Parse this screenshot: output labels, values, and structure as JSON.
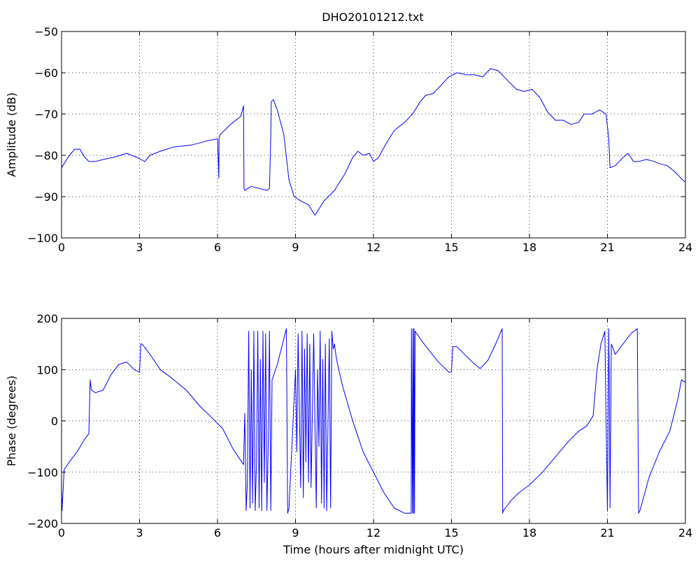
{
  "figure": {
    "title": "DHO20101212.txt"
  },
  "chart_data": [
    {
      "type": "line",
      "title": "DHO20101212.txt",
      "xlabel": "",
      "ylabel": "Amplitude (dB)",
      "xlim": [
        0,
        24
      ],
      "ylim": [
        -100,
        -50
      ],
      "xticks": [
        0,
        3,
        6,
        9,
        12,
        15,
        18,
        21,
        24
      ],
      "yticks": [
        -100,
        -90,
        -80,
        -70,
        -60,
        -50
      ],
      "grid": true,
      "series": [
        {
          "color": "#0000ff",
          "x": [
            0,
            0.25,
            0.5,
            0.7,
            0.9,
            1.05,
            1.3,
            1.6,
            2.0,
            2.5,
            2.9,
            3.2,
            3.4,
            3.8,
            4.3,
            5.0,
            5.6,
            6.0,
            6.05,
            6.06,
            6.1,
            6.5,
            6.9,
            7.0,
            7.02,
            7.05,
            7.3,
            7.6,
            7.9,
            8.0,
            8.05,
            8.07,
            8.15,
            8.3,
            8.55,
            8.75,
            8.95,
            9.2,
            9.5,
            9.75,
            10.1,
            10.5,
            10.9,
            11.2,
            11.4,
            11.6,
            11.85,
            12.0,
            12.2,
            12.5,
            12.8,
            13.2,
            13.5,
            13.8,
            14.0,
            14.3,
            14.6,
            14.9,
            15.2,
            15.6,
            15.9,
            16.2,
            16.5,
            16.8,
            17.1,
            17.5,
            17.8,
            18.1,
            18.4,
            18.7,
            19.0,
            19.3,
            19.6,
            19.9,
            20.1,
            20.4,
            20.7,
            20.95,
            21.05,
            21.1,
            21.3,
            21.6,
            21.8,
            22.0,
            22.2,
            22.5,
            22.8,
            23.0,
            23.3,
            23.6,
            23.9,
            24.0
          ],
          "y": [
            -83,
            -80.5,
            -78.5,
            -78.5,
            -80.5,
            -81.5,
            -81.5,
            -81,
            -80.5,
            -79.5,
            -80.5,
            -81.5,
            -80,
            -79,
            -78,
            -77.5,
            -76.5,
            -76,
            -85.5,
            -76,
            -75,
            -72.5,
            -70.5,
            -68,
            -88,
            -88.5,
            -87.5,
            -88,
            -88.5,
            -88,
            -75,
            -67,
            -66.5,
            -69,
            -75,
            -86,
            -90,
            -91,
            -92,
            -94.5,
            -91,
            -88.5,
            -84.5,
            -80.5,
            -79,
            -80,
            -79.5,
            -81.5,
            -80.5,
            -77,
            -74,
            -72,
            -70,
            -67,
            -65.5,
            -65,
            -63,
            -61,
            -60,
            -60.5,
            -60.5,
            -61,
            -59,
            -59.5,
            -61.5,
            -64,
            -64.5,
            -64,
            -66,
            -69.5,
            -71.5,
            -71.5,
            -72.5,
            -72,
            -70,
            -70,
            -69,
            -70,
            -76,
            -83,
            -82.5,
            -80.5,
            -79.5,
            -81.5,
            -81.5,
            -81,
            -81.5,
            -82,
            -82.5,
            -84,
            -86,
            -86.5
          ]
        }
      ]
    },
    {
      "type": "line",
      "title": "",
      "xlabel": "Time (hours after midnight UTC)",
      "ylabel": "Phase (degrees)",
      "xlim": [
        0,
        24
      ],
      "ylim": [
        -200,
        200
      ],
      "xticks": [
        0,
        3,
        6,
        9,
        12,
        15,
        18,
        21,
        24
      ],
      "yticks": [
        -200,
        -100,
        0,
        100,
        200
      ],
      "grid": true,
      "series": [
        {
          "color": "#0000ff",
          "x": [
            0,
            0.02,
            0.1,
            0.3,
            0.6,
            0.9,
            1.05,
            1.1,
            1.15,
            1.3,
            1.6,
            1.9,
            2.2,
            2.5,
            2.8,
            3.0,
            3.05,
            3.1,
            3.4,
            3.8,
            4.2,
            4.8,
            5.3,
            5.8,
            6.2,
            6.6,
            7.0,
            7.05,
            7.1,
            7.15,
            7.2,
            7.25,
            7.3,
            7.35,
            7.4,
            7.45,
            7.5,
            7.55,
            7.6,
            7.65,
            7.7,
            7.75,
            7.8,
            7.85,
            7.9,
            7.95,
            8.0,
            8.05,
            8.1,
            8.3,
            8.6,
            8.65,
            8.7,
            8.75,
            9.0,
            9.05,
            9.1,
            9.2,
            9.25,
            9.3,
            9.35,
            9.4,
            9.45,
            9.5,
            9.55,
            9.6,
            9.7,
            9.8,
            9.85,
            9.9,
            9.95,
            10.0,
            10.05,
            10.1,
            10.15,
            10.2,
            10.3,
            10.35,
            10.4,
            10.45,
            10.5,
            10.55,
            10.6,
            10.8,
            11.2,
            11.6,
            12.0,
            12.4,
            12.8,
            13.2,
            13.45,
            13.46,
            13.5,
            13.52,
            13.54,
            13.56,
            13.58,
            13.6,
            13.8,
            14.1,
            14.5,
            14.9,
            15.0,
            15.05,
            15.2,
            15.5,
            15.8,
            16.1,
            16.4,
            16.7,
            16.95,
            16.97,
            17.0,
            17.3,
            17.6,
            18.0,
            18.5,
            19.0,
            19.5,
            19.9,
            20.2,
            20.45,
            20.6,
            20.75,
            20.9,
            21.0,
            21.05,
            21.08,
            21.1,
            21.15,
            21.3,
            21.6,
            21.9,
            22.15,
            22.2,
            22.25,
            22.6,
            23.0,
            23.4,
            23.7,
            23.85,
            24.0
          ],
          "y": [
            -130,
            -175,
            -95,
            -80,
            -60,
            -35,
            -25,
            80,
            60,
            55,
            60,
            90,
            110,
            115,
            100,
            95,
            150,
            150,
            130,
            100,
            85,
            60,
            30,
            5,
            -15,
            -55,
            -85,
            15,
            -175,
            -120,
            175,
            -170,
            100,
            -160,
            175,
            -175,
            -80,
            175,
            -170,
            120,
            -175,
            175,
            -120,
            170,
            -175,
            -50,
            175,
            -175,
            80,
            110,
            170,
            180,
            -180,
            -170,
            100,
            -60,
            170,
            -130,
            175,
            -150,
            140,
            -80,
            170,
            -120,
            150,
            -130,
            170,
            -170,
            100,
            -50,
            175,
            -160,
            120,
            -170,
            150,
            -175,
            160,
            -170,
            175,
            140,
            150,
            130,
            115,
            70,
            0,
            -60,
            -100,
            -140,
            -170,
            -180,
            -180,
            180,
            -180,
            180,
            -180,
            180,
            -180,
            175,
            160,
            140,
            115,
            95,
            95,
            145,
            145,
            130,
            115,
            102,
            118,
            150,
            180,
            -180,
            -175,
            -155,
            -140,
            -125,
            -100,
            -70,
            -40,
            -20,
            -10,
            10,
            100,
            150,
            175,
            -175,
            180,
            15,
            -170,
            150,
            130,
            150,
            170,
            180,
            -180,
            -175,
            -110,
            -60,
            -20,
            40,
            80,
            75
          ]
        }
      ]
    }
  ]
}
